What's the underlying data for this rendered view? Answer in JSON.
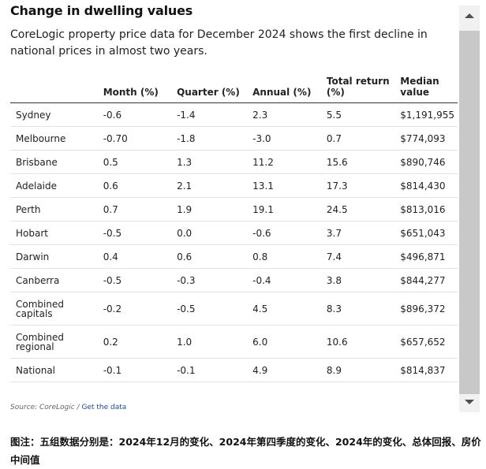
{
  "chart_data": {
    "type": "table",
    "title": "Change in dwelling values",
    "subtitle": "CoreLogic property price data for December 2024 shows the first decline in national prices in almost two years.",
    "columns": [
      "",
      "Month (%)",
      "Quarter (%)",
      "Annual (%)",
      "Total return (%)",
      "Median value"
    ],
    "rows": [
      {
        "city": "Sydney",
        "month": "-0.6",
        "quarter": "-1.4",
        "annual": "2.3",
        "total": "5.5",
        "median": "$1,191,955"
      },
      {
        "city": "Melbourne",
        "month": "-0.70",
        "quarter": "-1.8",
        "annual": "-3.0",
        "total": "0.7",
        "median": "$774,093"
      },
      {
        "city": "Brisbane",
        "month": "0.5",
        "quarter": "1.3",
        "annual": "11.2",
        "total": "15.6",
        "median": "$890,746"
      },
      {
        "city": "Adelaide",
        "month": "0.6",
        "quarter": "2.1",
        "annual": "13.1",
        "total": "17.3",
        "median": "$814,430"
      },
      {
        "city": "Perth",
        "month": "0.7",
        "quarter": "1.9",
        "annual": "19.1",
        "total": "24.5",
        "median": "$813,016"
      },
      {
        "city": "Hobart",
        "month": "-0.5",
        "quarter": "0.0",
        "annual": "-0.6",
        "total": "3.7",
        "median": "$651,043"
      },
      {
        "city": "Darwin",
        "month": "0.4",
        "quarter": "0.6",
        "annual": "0.8",
        "total": "7.4",
        "median": "$496,871"
      },
      {
        "city": "Canberra",
        "month": "-0.5",
        "quarter": "-0.3",
        "annual": "-0.4",
        "total": "3.8",
        "median": "$844,277"
      },
      {
        "city": "Combined capitals",
        "month": "-0.2",
        "quarter": "-0.5",
        "annual": "4.5",
        "total": "8.3",
        "median": "$896,372"
      },
      {
        "city": "Combined regional",
        "month": "0.2",
        "quarter": "1.0",
        "annual": "6.0",
        "total": "10.6",
        "median": "$657,652"
      },
      {
        "city": "National",
        "month": "-0.1",
        "quarter": "-0.1",
        "annual": "4.9",
        "total": "8.9",
        "median": "$814,837"
      }
    ],
    "source_label": "Source: CoreLogic /",
    "source_link": "Get the data"
  },
  "caption": "图注：五组数据分别是：2024年12月的变化、2024年第四季度的变化、2024年的变化、总体回报、房价中间值",
  "colors": {
    "link": "#1a4fa3",
    "scroll_thumb": "#c8c8c8",
    "scroll_track": "#f1f1f1"
  }
}
